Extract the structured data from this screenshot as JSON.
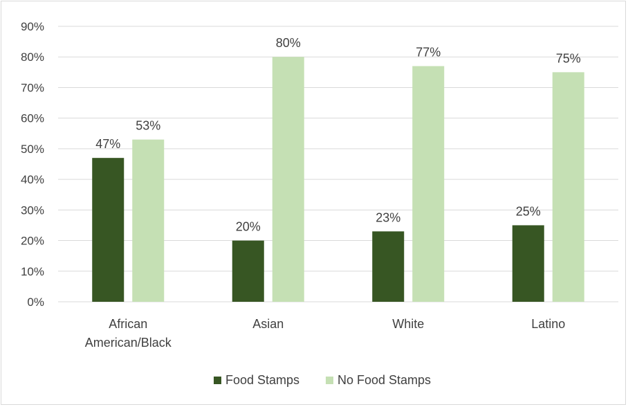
{
  "chart_data": {
    "type": "bar",
    "categories": [
      [
        "African",
        "American/Black"
      ],
      [
        "Asian"
      ],
      [
        "White"
      ],
      [
        "Latino"
      ]
    ],
    "series": [
      {
        "name": "Food Stamps",
        "values": [
          47,
          20,
          23,
          25
        ],
        "labels": [
          "47%",
          "20%",
          "23%",
          "25%"
        ],
        "color": "#375623"
      },
      {
        "name": "No Food Stamps",
        "values": [
          53,
          80,
          77,
          75
        ],
        "labels": [
          "53%",
          "80%",
          "77%",
          "75%"
        ],
        "color": "#c5e0b4"
      }
    ],
    "ylim": [
      0,
      90
    ],
    "yticks": [
      0,
      10,
      20,
      30,
      40,
      50,
      60,
      70,
      80,
      90
    ],
    "ytick_labels": [
      "0%",
      "10%",
      "20%",
      "30%",
      "40%",
      "50%",
      "60%",
      "70%",
      "80%",
      "90%"
    ],
    "grid": true,
    "legend": "bottom",
    "gridline_color": "#d9d9d9",
    "title": "",
    "xlabel": "",
    "ylabel": ""
  }
}
